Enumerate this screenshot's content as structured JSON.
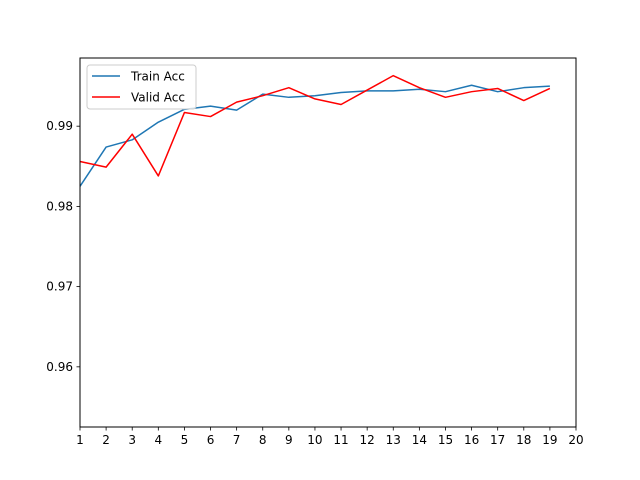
{
  "chart_data": {
    "type": "line",
    "title": "",
    "xlabel": "",
    "ylabel": "",
    "xlim": [
      1,
      20
    ],
    "ylim": [
      0.9525,
      0.9985
    ],
    "x_ticks": [
      1,
      2,
      3,
      4,
      5,
      6,
      7,
      8,
      9,
      10,
      11,
      12,
      13,
      14,
      15,
      16,
      17,
      18,
      19,
      20
    ],
    "y_ticks": [
      0.96,
      0.97,
      0.98,
      0.99
    ],
    "y_tick_labels": [
      "0.96",
      "0.97",
      "0.98",
      "0.99"
    ],
    "grid": false,
    "legend_position": "upper-left",
    "x": [
      1,
      2,
      3,
      4,
      5,
      6,
      7,
      8,
      9,
      10,
      11,
      12,
      13,
      14,
      15,
      16,
      17,
      18,
      19
    ],
    "series": [
      {
        "name": "Train Acc",
        "color": "#1f77b4",
        "values": [
          0.9825,
          0.9874,
          0.9883,
          0.9905,
          0.9921,
          0.9925,
          0.992,
          0.994,
          0.9936,
          0.9938,
          0.9942,
          0.9944,
          0.9944,
          0.9946,
          0.9943,
          0.9951,
          0.9943,
          0.9948,
          0.995
        ]
      },
      {
        "name": "Valid Acc",
        "color": "#ff0000",
        "values": [
          0.9856,
          0.9849,
          0.989,
          0.9838,
          0.9917,
          0.9912,
          0.993,
          0.9938,
          0.9948,
          0.9934,
          0.9927,
          0.9945,
          0.9963,
          0.9948,
          0.9936,
          0.9943,
          0.9947,
          0.9932,
          0.9947
        ]
      }
    ]
  }
}
